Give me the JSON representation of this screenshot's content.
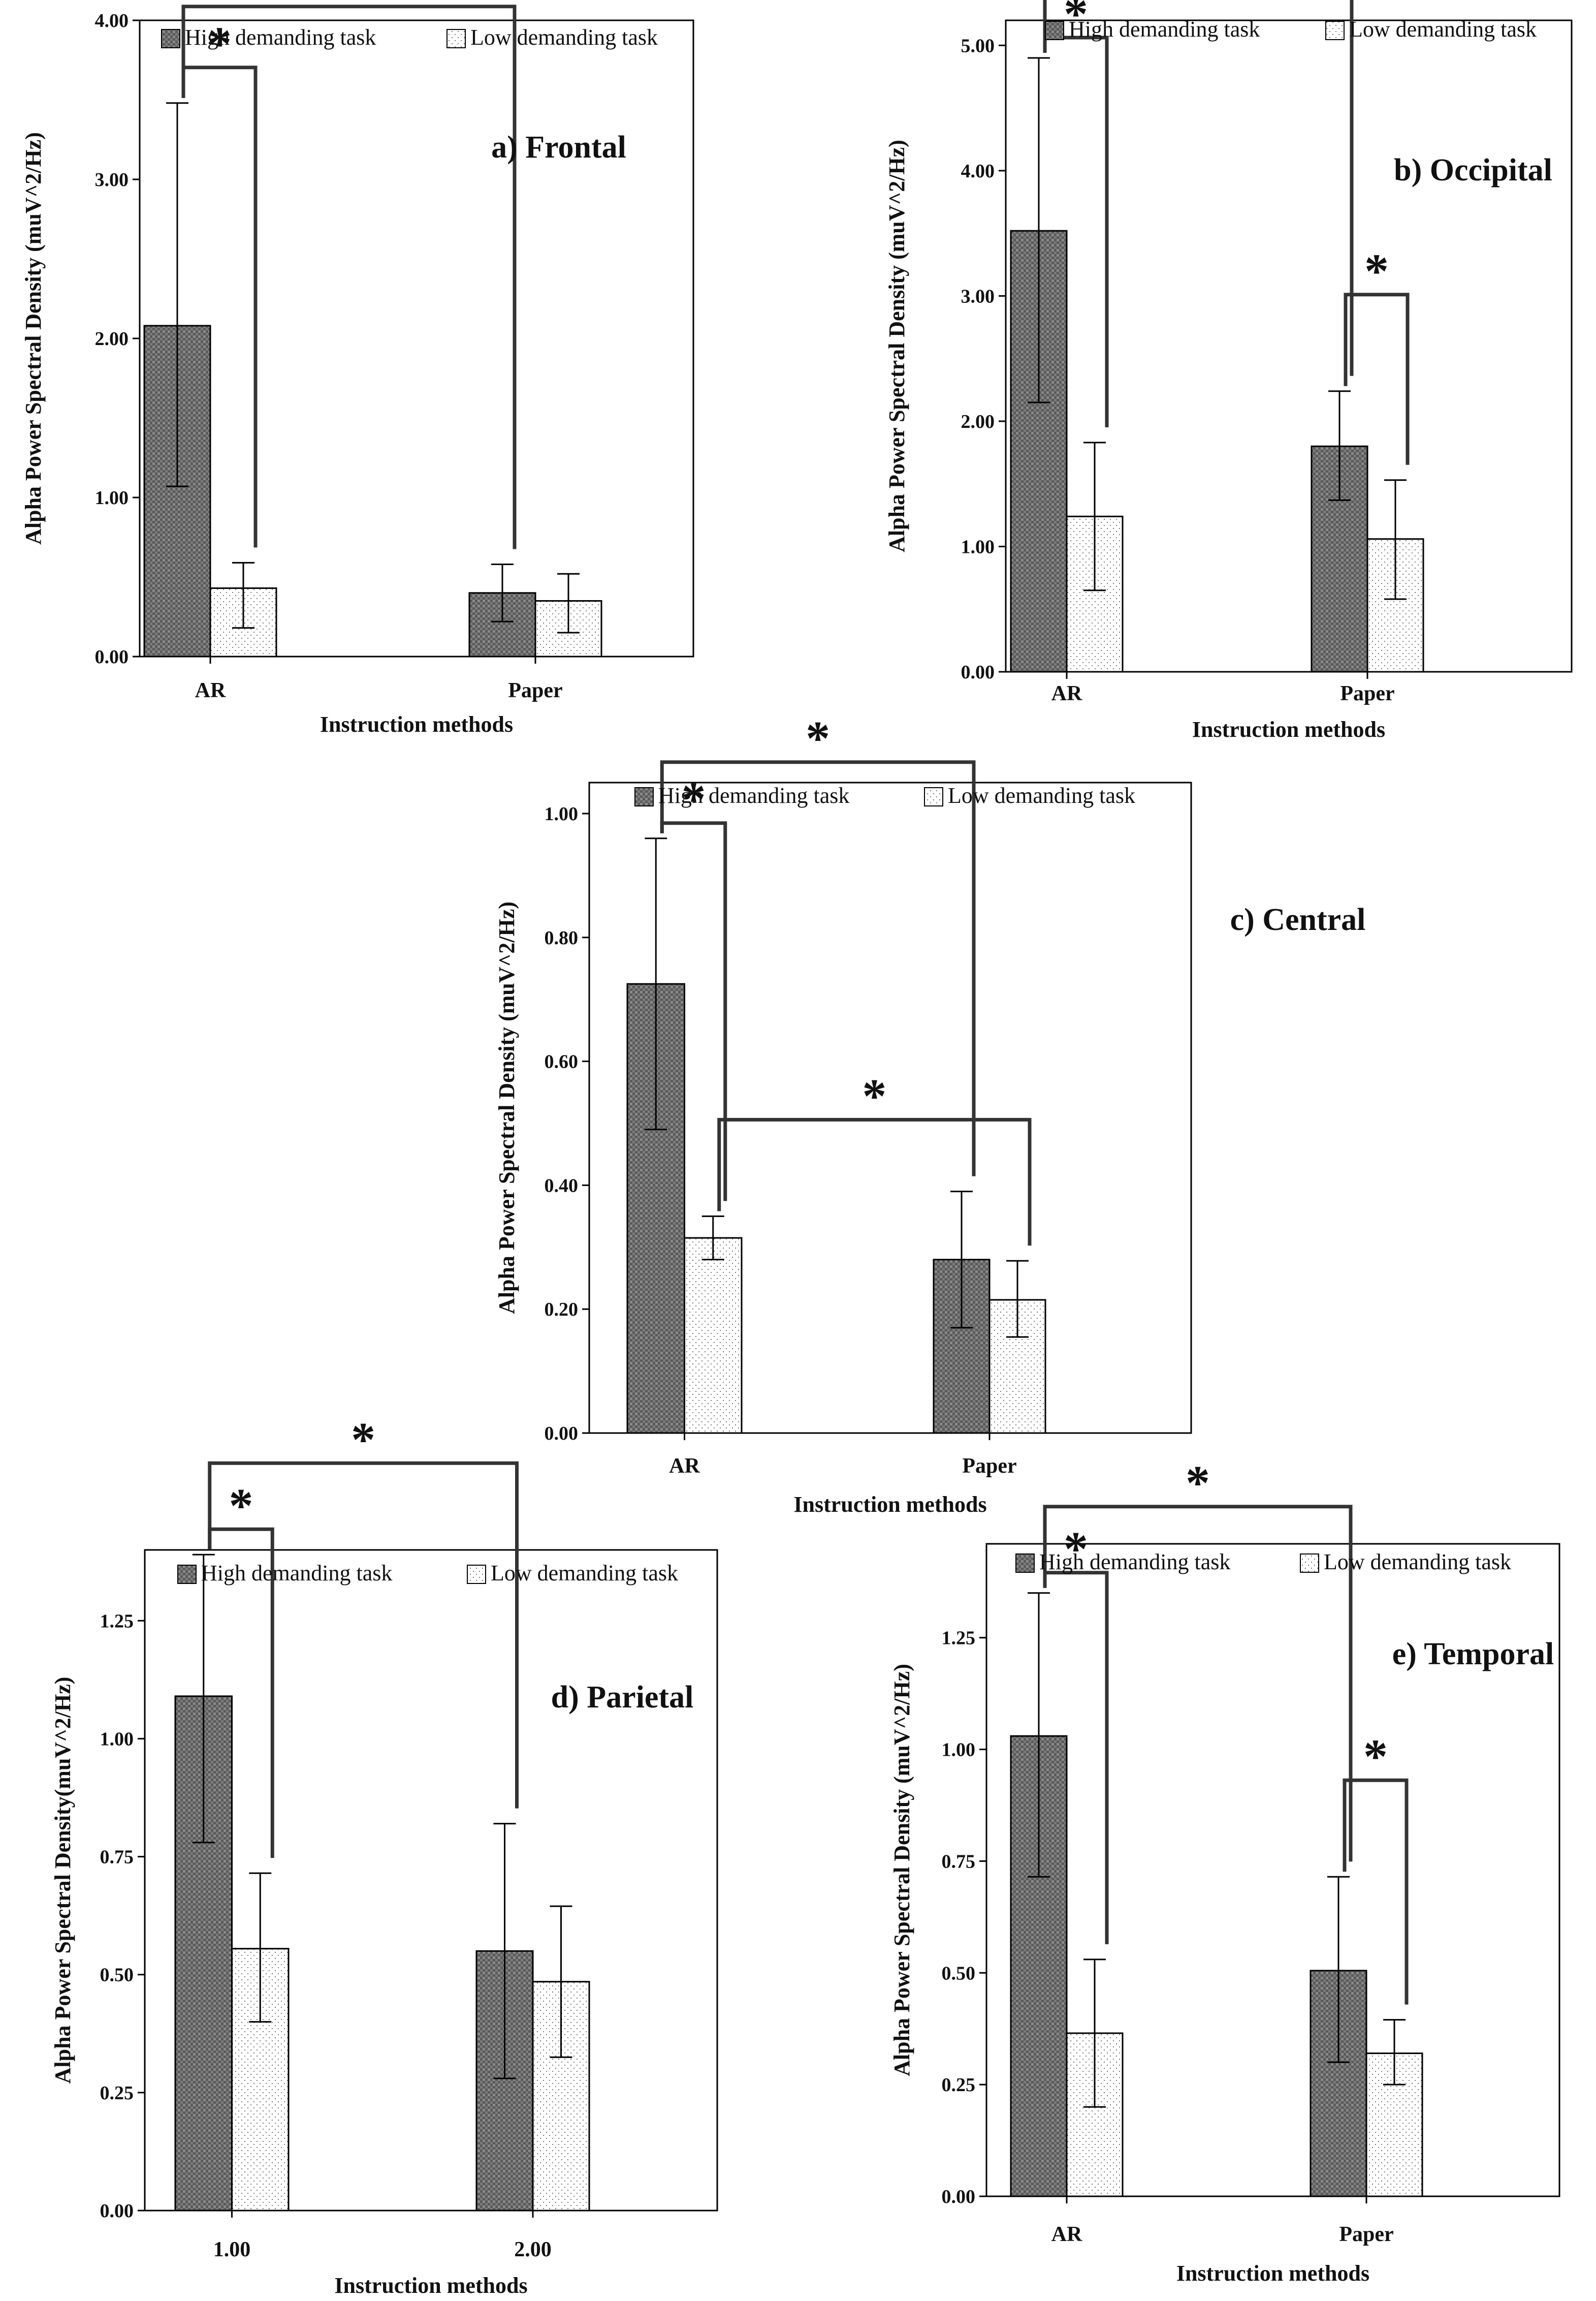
{
  "chart_data": [
    {
      "type": "bar",
      "title": "a) Frontal",
      "xlabel": "Instruction methods",
      "ylabel": "Alpha Power Spectral Density (muV^2/Hz)",
      "ylim": [
        0,
        4
      ],
      "yticks": [
        "0.00",
        "1.00",
        "2.00",
        "3.00",
        "4.00"
      ],
      "categories": [
        "AR",
        "Paper"
      ],
      "legend_position": "top",
      "series": [
        {
          "name": "High demanding task",
          "values": [
            2.08,
            0.4
          ],
          "error_low": [
            1.07,
            0.22
          ],
          "error_high": [
            3.48,
            0.58
          ]
        },
        {
          "name": "Low demanding task",
          "values": [
            0.43,
            0.35
          ],
          "error_low": [
            0.18,
            0.15
          ],
          "error_high": [
            0.59,
            0.52
          ]
        }
      ],
      "significance": [
        {
          "from": [
            0,
            0
          ],
          "to": [
            0,
            1
          ],
          "label": "*"
        },
        {
          "from": [
            0,
            0
          ],
          "to": [
            1,
            0
          ],
          "label": "*"
        }
      ]
    },
    {
      "type": "bar",
      "title": "b) Occipital",
      "xlabel": "Instruction methods",
      "ylabel": "Alpha Power Spectral Density (muV^2/Hz)",
      "ylim": [
        0,
        5.2
      ],
      "yticks": [
        "0.00",
        "1.00",
        "2.00",
        "3.00",
        "4.00",
        "5.00"
      ],
      "categories": [
        "AR",
        "Paper"
      ],
      "legend_position": "top",
      "series": [
        {
          "name": "High demanding task",
          "values": [
            3.52,
            1.8
          ],
          "error_low": [
            2.15,
            1.37
          ],
          "error_high": [
            4.9,
            2.24
          ]
        },
        {
          "name": "Low demanding task",
          "values": [
            1.24,
            1.06
          ],
          "error_low": [
            0.65,
            0.58
          ],
          "error_high": [
            1.83,
            1.53
          ]
        }
      ],
      "significance": [
        {
          "from": [
            0,
            0
          ],
          "to": [
            0,
            1
          ],
          "label": "*"
        },
        {
          "from": [
            0,
            0
          ],
          "to": [
            1,
            0
          ],
          "label": "*"
        },
        {
          "from": [
            1,
            0
          ],
          "to": [
            1,
            1
          ],
          "label": "*"
        }
      ]
    },
    {
      "type": "bar",
      "title": "c) Central",
      "xlabel": "Instruction methods",
      "ylabel": "Alpha Power Spectral Density (muV^2/Hz)",
      "ylim": [
        0,
        1.05
      ],
      "yticks": [
        "0.00",
        "0.20",
        "0.40",
        "0.60",
        "0.80",
        "1.00"
      ],
      "categories": [
        "AR",
        "Paper"
      ],
      "legend_position": "top",
      "series": [
        {
          "name": "High demanding task",
          "values": [
            0.725,
            0.28
          ],
          "error_low": [
            0.49,
            0.17
          ],
          "error_high": [
            0.96,
            0.39
          ]
        },
        {
          "name": "Low demanding task",
          "values": [
            0.315,
            0.215
          ],
          "error_low": [
            0.28,
            0.155
          ],
          "error_high": [
            0.35,
            0.278
          ]
        }
      ],
      "significance": [
        {
          "from": [
            0,
            0
          ],
          "to": [
            0,
            1
          ],
          "label": "*"
        },
        {
          "from": [
            0,
            0
          ],
          "to": [
            1,
            0
          ],
          "label": "*"
        },
        {
          "from": [
            0,
            1
          ],
          "to": [
            1,
            1
          ],
          "label": "*"
        }
      ]
    },
    {
      "type": "bar",
      "title": "d) Parietal",
      "xlabel": "Instruction methods",
      "ylabel": "Alpha Power Spectral Density(muV^2/Hz)",
      "ylim": [
        0,
        1.4
      ],
      "yticks": [
        "0.00",
        "0.25",
        "0.50",
        "0.75",
        "1.00",
        "1.25"
      ],
      "categories": [
        "1.00",
        "2.00"
      ],
      "legend_position": "top",
      "series": [
        {
          "name": "High demanding task",
          "values": [
            1.09,
            0.55
          ],
          "error_low": [
            0.78,
            0.28
          ],
          "error_high": [
            1.39,
            0.82
          ]
        },
        {
          "name": "Low demanding task",
          "values": [
            0.555,
            0.485
          ],
          "error_low": [
            0.4,
            0.325
          ],
          "error_high": [
            0.715,
            0.645
          ]
        }
      ],
      "significance": [
        {
          "from": [
            0,
            0
          ],
          "to": [
            0,
            1
          ],
          "label": "*"
        },
        {
          "from": [
            0,
            0
          ],
          "to": [
            1,
            0
          ],
          "label": "*"
        }
      ]
    },
    {
      "type": "bar",
      "title": "e) Temporal",
      "xlabel": "Instruction methods",
      "ylabel": "Alpha Power Spectral Density (muV^2/Hz)",
      "ylim": [
        0,
        1.46
      ],
      "yticks": [
        "0.00",
        "0.25",
        "0.50",
        "0.75",
        "1.00",
        "1.25"
      ],
      "categories": [
        "AR",
        "Paper"
      ],
      "legend_position": "top",
      "series": [
        {
          "name": "High demanding task",
          "values": [
            1.03,
            0.505
          ],
          "error_low": [
            0.715,
            0.3
          ],
          "error_high": [
            1.35,
            0.715
          ]
        },
        {
          "name": "Low demanding task",
          "values": [
            0.365,
            0.32
          ],
          "error_low": [
            0.2,
            0.25
          ],
          "error_high": [
            0.53,
            0.395
          ]
        }
      ],
      "significance": [
        {
          "from": [
            0,
            0
          ],
          "to": [
            0,
            1
          ],
          "label": "*"
        },
        {
          "from": [
            0,
            0
          ],
          "to": [
            1,
            0
          ],
          "label": "*"
        },
        {
          "from": [
            1,
            0
          ],
          "to": [
            1,
            1
          ],
          "label": "*"
        }
      ]
    }
  ]
}
